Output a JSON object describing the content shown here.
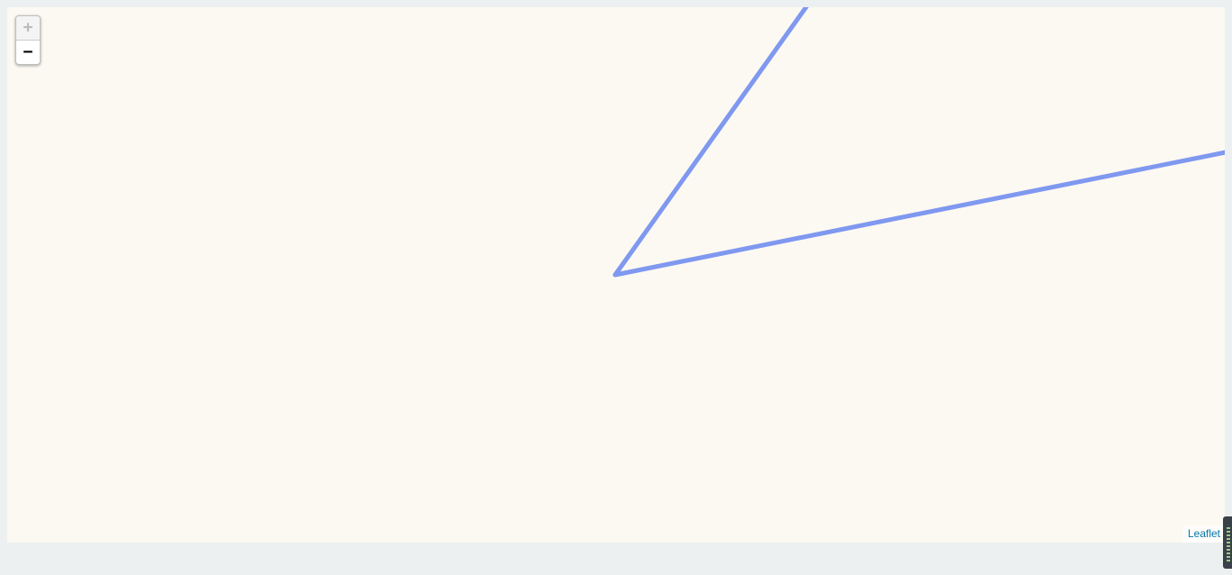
{
  "map": {
    "zoom_in_label": "+",
    "zoom_out_label": "−",
    "attribution_link": "Leaflet",
    "background_color": "#fcf9f2",
    "route": {
      "color": "#7f98f0",
      "segments": 2
    }
  },
  "side_widget": {
    "icon": "level-meter-icon"
  }
}
